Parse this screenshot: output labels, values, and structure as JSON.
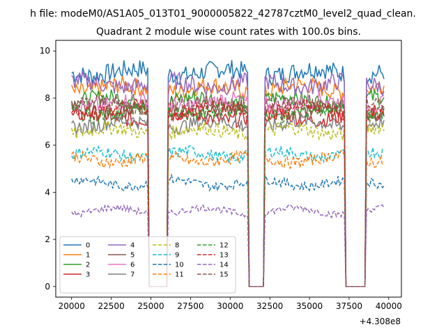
{
  "chart_data": {
    "type": "line",
    "suptitle": "h file: modeM0/AS1A05_013T01_9000005822_42787cztM0_level2_quad_clean.",
    "title": "Quadrant 2 module wise count rates with 100.0s bins.",
    "xlabel": "",
    "ylabel": "",
    "x_offset_label": "+4.308e8",
    "xlim": [
      19000,
      40800
    ],
    "ylim": [
      -0.45,
      10.45
    ],
    "x_ticks": [
      20000,
      22500,
      25000,
      27500,
      30000,
      32500,
      35000,
      37500,
      40000
    ],
    "y_ticks": [
      0,
      2,
      4,
      6,
      8,
      10
    ],
    "x_start": 20000,
    "x_end": 39700,
    "bin": 100,
    "segments": [
      {
        "x0": 20000,
        "x1": 24800
      },
      {
        "x0": 26100,
        "x1": 31100
      },
      {
        "x0": 32200,
        "x1": 37200
      },
      {
        "x0": 38600,
        "x1": 39700
      }
    ],
    "series": [
      {
        "name": "0",
        "mean": 9.1,
        "color": "#1f77b4",
        "dash": false
      },
      {
        "name": "1",
        "mean": 8.4,
        "color": "#ff7f0e",
        "dash": false
      },
      {
        "name": "2",
        "mean": 7.9,
        "color": "#2ca02c",
        "dash": false
      },
      {
        "name": "3",
        "mean": 7.2,
        "color": "#d62728",
        "dash": false
      },
      {
        "name": "4",
        "mean": 8.6,
        "color": "#9467bd",
        "dash": false
      },
      {
        "name": "5",
        "mean": 7.5,
        "color": "#8c564b",
        "dash": false
      },
      {
        "name": "6",
        "mean": 7.8,
        "color": "#e377c2",
        "dash": false
      },
      {
        "name": "7",
        "mean": 6.9,
        "color": "#7f7f7f",
        "dash": false
      },
      {
        "name": "8",
        "mean": 6.6,
        "color": "#bcbd22",
        "dash": true
      },
      {
        "name": "9",
        "mean": 5.6,
        "color": "#17becf",
        "dash": true
      },
      {
        "name": "10",
        "mean": 4.4,
        "color": "#1f77b4",
        "dash": true
      },
      {
        "name": "11",
        "mean": 5.4,
        "color": "#ff7f0e",
        "dash": true
      },
      {
        "name": "12",
        "mean": 7.4,
        "color": "#2ca02c",
        "dash": true
      },
      {
        "name": "13",
        "mean": 7.5,
        "color": "#d62728",
        "dash": true
      },
      {
        "name": "14",
        "mean": 3.2,
        "color": "#9467bd",
        "dash": true
      },
      {
        "name": "15",
        "mean": 7.7,
        "color": "#8c564b",
        "dash": true
      }
    ],
    "legend": {
      "location": "lower-left",
      "columns": 4
    },
    "grid": false
  }
}
